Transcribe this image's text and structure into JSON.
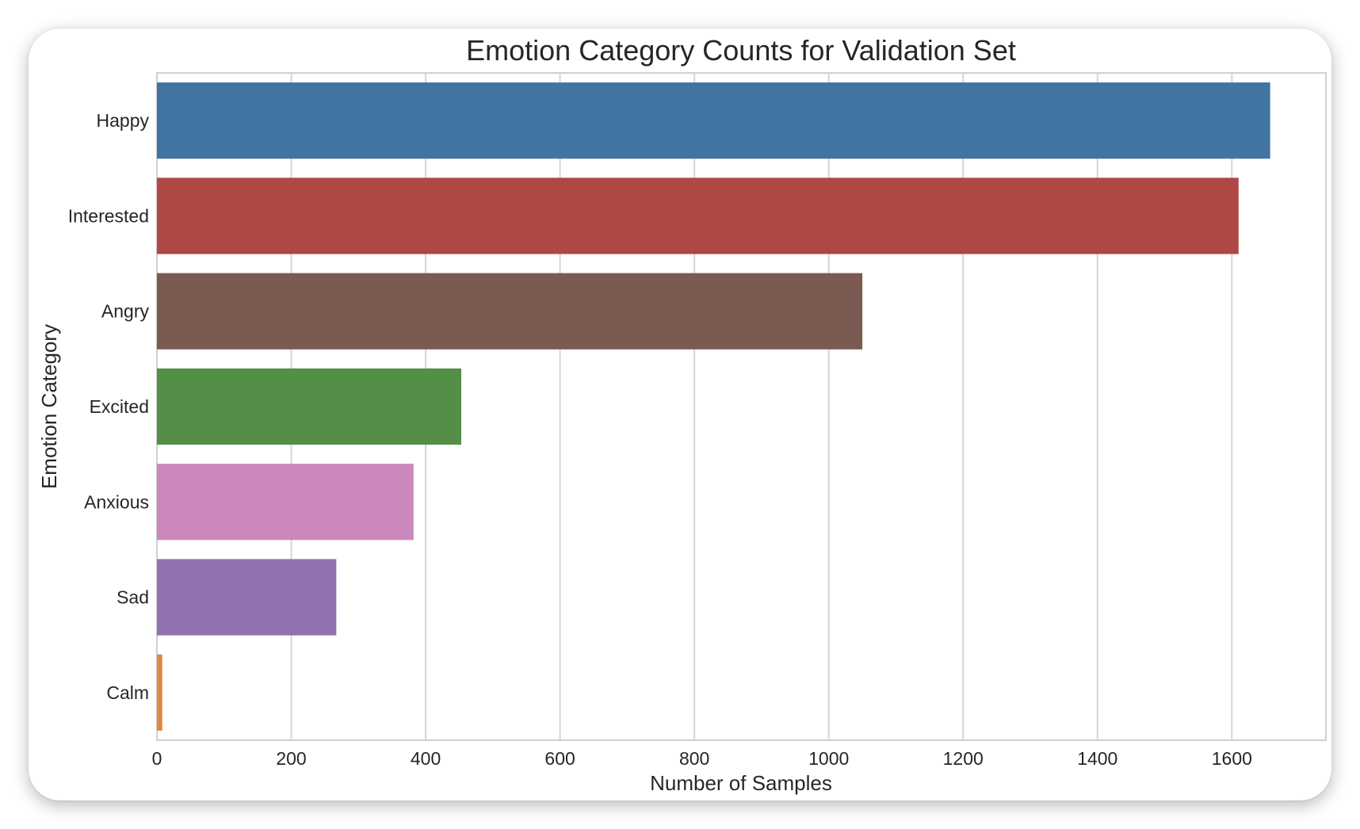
{
  "chart_data": {
    "type": "bar",
    "orientation": "horizontal",
    "title": "Emotion Category Counts for Validation Set",
    "xlabel": "Number of Samples",
    "ylabel": "Emotion Category",
    "categories": [
      "Happy",
      "Interested",
      "Angry",
      "Excited",
      "Anxious",
      "Sad",
      "Calm"
    ],
    "values": [
      1657,
      1610,
      1050,
      453,
      382,
      267,
      8
    ],
    "colors": [
      "#4274a1",
      "#af4745",
      "#7b5b51",
      "#548f47",
      "#cb88bb",
      "#8f72ae",
      "#df893c"
    ],
    "xlim": [
      0,
      1740
    ],
    "xticks": [
      0,
      200,
      400,
      600,
      800,
      1000,
      1200,
      1400,
      1600
    ],
    "grid": true,
    "legend": "none"
  }
}
